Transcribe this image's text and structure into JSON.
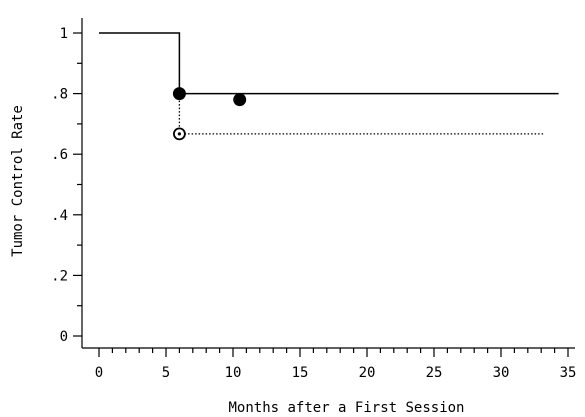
{
  "chart_data": {
    "type": "line",
    "step": true,
    "title": "",
    "xlabel": "Months after a First Session",
    "ylabel": "Tumor Control Rate",
    "xlim": [
      -1,
      36
    ],
    "ylim": [
      -0.03,
      1.03
    ],
    "grid": false,
    "legend": "none",
    "x_ticks": [
      0,
      5,
      10,
      15,
      20,
      25,
      30,
      35
    ],
    "x_tick_labels": [
      "0",
      "5",
      "10",
      "15",
      "20",
      "25",
      "30",
      "35"
    ],
    "x_minor_ticks": [
      1,
      2,
      3,
      4,
      6,
      7,
      8,
      9,
      11,
      12,
      13,
      14,
      16,
      17,
      18,
      19,
      21,
      22,
      23,
      24,
      26,
      27,
      28,
      29,
      31,
      32,
      33,
      34
    ],
    "y_ticks": [
      0,
      0.2,
      0.4,
      0.6,
      0.8,
      1
    ],
    "y_tick_labels": [
      "0",
      ".2",
      ".4",
      ".6",
      ".8",
      "1"
    ],
    "y_minor_ticks": [
      0.1,
      0.3,
      0.5,
      0.7,
      0.9
    ],
    "series": [
      {
        "style": "solid",
        "color": "#000000",
        "x": [
          0,
          6,
          6,
          34.3
        ],
        "y": [
          1,
          1,
          0.8,
          0.8
        ],
        "markers": [
          {
            "x": 6,
            "y": 0.8,
            "type": "filled-circle"
          },
          {
            "x": 10.5,
            "y": 0.78,
            "type": "filled-circle"
          }
        ],
        "tail": {
          "from_x": 10.5,
          "y": 0.78
        }
      },
      {
        "style": "dotted",
        "color": "#000000",
        "x": [
          6,
          6,
          33.2
        ],
        "y": [
          0.8,
          0.667,
          0.667
        ],
        "markers": [
          {
            "x": 6,
            "y": 0.667,
            "type": "open-circle-dot"
          }
        ]
      }
    ]
  }
}
